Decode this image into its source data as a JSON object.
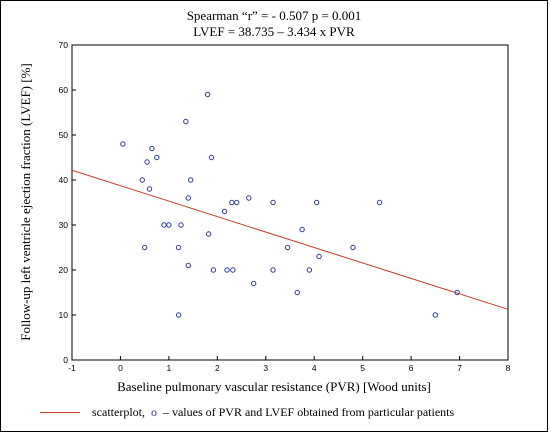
{
  "chart_data": {
    "type": "scatter",
    "title": "Spearman “r” = -  0.507 p = 0.001",
    "subtitle": "LVEF = 38.735 – 3.434 x PVR",
    "xlabel": "Baseline pulmonary vascular resistance (PVR) [Wood units]",
    "ylabel": "Follow-up left ventricle ejection fraction (LVEF) [%]",
    "xlim": [
      -1,
      8
    ],
    "ylim": [
      0,
      70
    ],
    "x_ticks": [
      "-1",
      "0",
      "1",
      "2",
      "3",
      "4",
      "5",
      "6",
      "7",
      "8"
    ],
    "y_ticks": [
      "0",
      "10",
      "20",
      "30",
      "40",
      "50",
      "60",
      "70"
    ],
    "regression": {
      "intercept": 38.735,
      "slope": -3.434
    },
    "points": [
      {
        "x": 0.05,
        "y": 48
      },
      {
        "x": 0.45,
        "y": 40
      },
      {
        "x": 0.55,
        "y": 44
      },
      {
        "x": 0.6,
        "y": 38
      },
      {
        "x": 0.65,
        "y": 47
      },
      {
        "x": 0.75,
        "y": 45
      },
      {
        "x": 0.5,
        "y": 25
      },
      {
        "x": 0.9,
        "y": 30
      },
      {
        "x": 1.0,
        "y": 30
      },
      {
        "x": 1.2,
        "y": 25
      },
      {
        "x": 1.2,
        "y": 10
      },
      {
        "x": 1.25,
        "y": 30
      },
      {
        "x": 1.35,
        "y": 53
      },
      {
        "x": 1.4,
        "y": 36
      },
      {
        "x": 1.4,
        "y": 21
      },
      {
        "x": 1.45,
        "y": 40
      },
      {
        "x": 1.8,
        "y": 59
      },
      {
        "x": 1.82,
        "y": 28
      },
      {
        "x": 1.88,
        "y": 45
      },
      {
        "x": 1.92,
        "y": 20
      },
      {
        "x": 2.15,
        "y": 33
      },
      {
        "x": 2.2,
        "y": 20
      },
      {
        "x": 2.3,
        "y": 35
      },
      {
        "x": 2.32,
        "y": 20
      },
      {
        "x": 2.4,
        "y": 35
      },
      {
        "x": 2.65,
        "y": 36
      },
      {
        "x": 2.75,
        "y": 17
      },
      {
        "x": 3.15,
        "y": 35
      },
      {
        "x": 3.15,
        "y": 20
      },
      {
        "x": 3.45,
        "y": 25
      },
      {
        "x": 3.65,
        "y": 15
      },
      {
        "x": 3.75,
        "y": 29
      },
      {
        "x": 3.9,
        "y": 20
      },
      {
        "x": 4.05,
        "y": 35
      },
      {
        "x": 4.1,
        "y": 23
      },
      {
        "x": 4.8,
        "y": 25
      },
      {
        "x": 5.35,
        "y": 35
      },
      {
        "x": 6.5,
        "y": 10
      },
      {
        "x": 6.95,
        "y": 15
      }
    ],
    "colors": {
      "points": "#2b3a9a",
      "line": "#c0402a"
    },
    "legend": {
      "line_label": "scatterplot,",
      "marker_glyph": "o",
      "marker_label": "– values of PVR and LVEF obtained from particular patients",
      "position": "bottom"
    },
    "grid": false
  }
}
